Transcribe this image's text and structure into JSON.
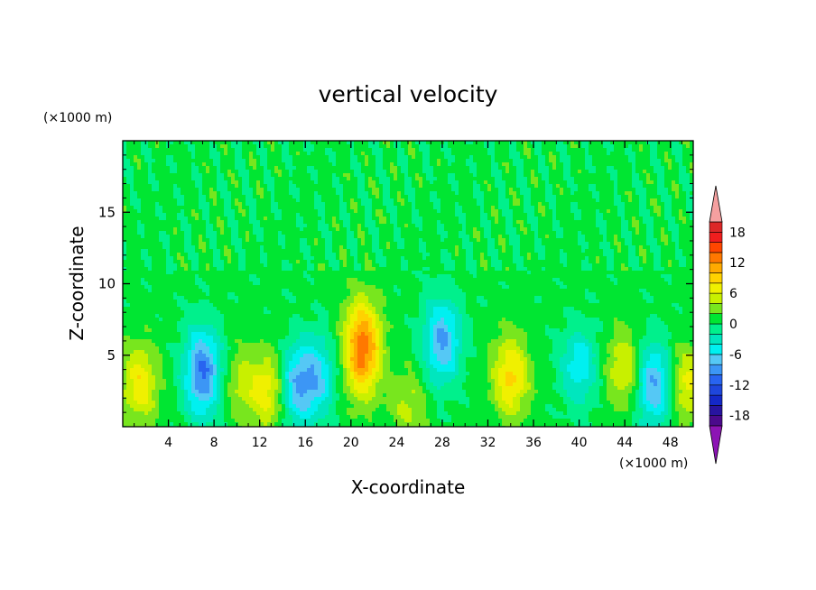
{
  "chart_data": {
    "type": "heatmap",
    "title": "vertical velocity",
    "xlabel": "X-coordinate",
    "ylabel": "Z-coordinate",
    "x_unit": "(×1000 m)",
    "y_unit": "(×1000 m)",
    "xlim": [
      0,
      50
    ],
    "ylim": [
      0,
      20
    ],
    "x_ticks": [
      "4",
      "8",
      "12",
      "16",
      "20",
      "24",
      "28",
      "32",
      "36",
      "40",
      "44",
      "48"
    ],
    "y_ticks": [
      "5",
      "10",
      "15"
    ],
    "colorbar": {
      "levels": [
        -20,
        -18,
        -16,
        -14,
        -12,
        -10,
        -8,
        -6,
        -4,
        -2,
        0,
        2,
        4,
        6,
        8,
        10,
        12,
        14,
        16,
        18,
        20
      ],
      "tick_labels": [
        "18",
        "12",
        "6",
        "0",
        "-6",
        "-12",
        "-18"
      ],
      "colors": [
        "#4b0a8c",
        "#2814a0",
        "#1428c8",
        "#1e46dc",
        "#2864f0",
        "#3c96f5",
        "#55c8f5",
        "#00f0f0",
        "#00e6be",
        "#00f08c",
        "#00e632",
        "#78e61e",
        "#c8f000",
        "#f0f000",
        "#ffd200",
        "#ffaa00",
        "#ff7800",
        "#ff4600",
        "#f01e1e",
        "#dc2828"
      ],
      "under_color": "#8c14b4",
      "over_color": "#f5a0a0"
    },
    "features": [
      {
        "x": 1.5,
        "z": 3.0,
        "value": 7
      },
      {
        "x": 7.0,
        "z": 3.8,
        "value": -11
      },
      {
        "x": 10.5,
        "z": 3.0,
        "value": 4
      },
      {
        "x": 13.0,
        "z": 2.5,
        "value": 7
      },
      {
        "x": 15.0,
        "z": 2.8,
        "value": -8
      },
      {
        "x": 17.0,
        "z": 3.5,
        "value": -7
      },
      {
        "x": 21.0,
        "z": 5.5,
        "value": 13
      },
      {
        "x": 25.0,
        "z": 1.5,
        "value": 4
      },
      {
        "x": 28.0,
        "z": 6.0,
        "value": -9
      },
      {
        "x": 34.0,
        "z": 3.5,
        "value": 8
      },
      {
        "x": 40.0,
        "z": 4.2,
        "value": -6
      },
      {
        "x": 44.0,
        "z": 4.0,
        "value": 6
      },
      {
        "x": 46.5,
        "z": 3.0,
        "value": -9
      },
      {
        "x": 49.5,
        "z": 3.0,
        "value": 6
      }
    ]
  }
}
